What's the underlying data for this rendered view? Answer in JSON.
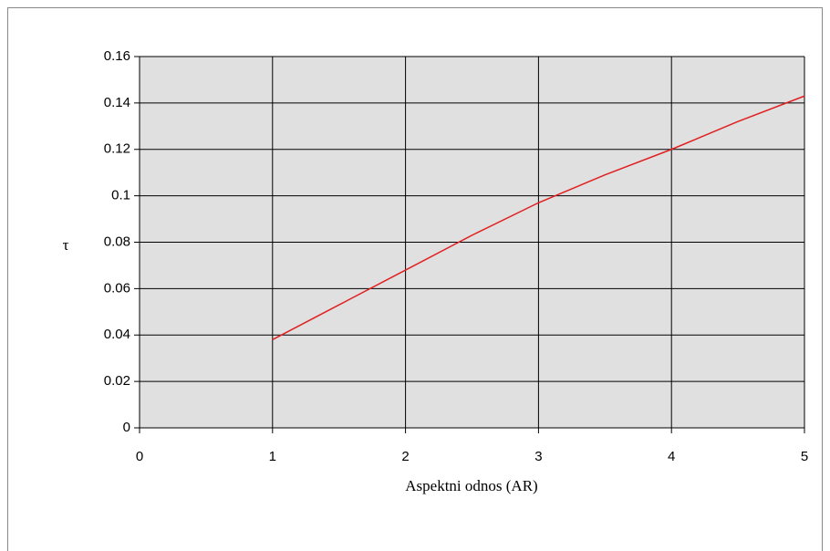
{
  "chart_data": {
    "type": "line",
    "xlabel": "Aspektni odnos (AR)",
    "ylabel": "τ",
    "x": [
      1,
      1.5,
      2,
      2.5,
      3,
      3.5,
      4,
      4.5,
      5
    ],
    "series": [
      {
        "name": "τ",
        "color": "#e02020",
        "values": [
          0.038,
          0.053,
          0.068,
          0.083,
          0.097,
          0.109,
          0.12,
          0.132,
          0.143
        ]
      }
    ],
    "xlim": [
      0,
      5
    ],
    "xticks": [
      0,
      1,
      2,
      3,
      4,
      5
    ],
    "ylim": [
      0,
      0.16
    ],
    "yticks": [
      0,
      0.02,
      0.04,
      0.06,
      0.08,
      0.1,
      0.12,
      0.14,
      0.16
    ],
    "grid": true
  }
}
